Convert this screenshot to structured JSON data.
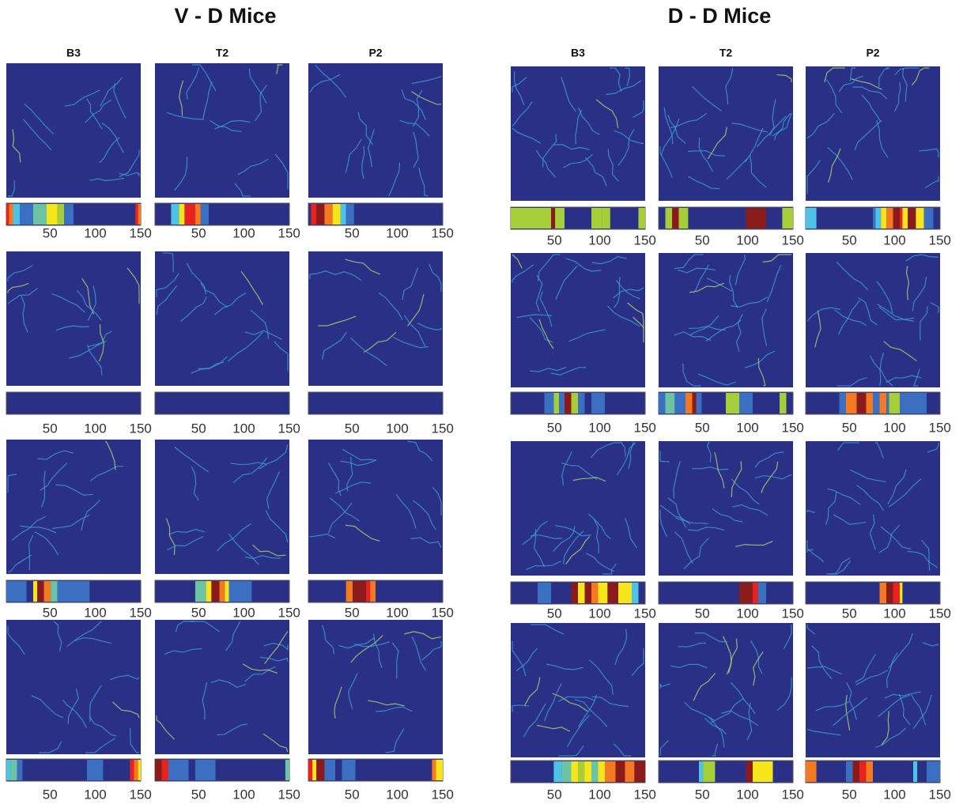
{
  "groups": [
    {
      "title": "V - D Mice",
      "columns": [
        "B3",
        "T2",
        "P2"
      ],
      "xlim": [
        0,
        152
      ],
      "xticks": [
        50,
        100,
        150
      ]
    },
    {
      "title": "D - D Mice",
      "columns": [
        "B3",
        "T2",
        "P2"
      ],
      "xlim": [
        0,
        152
      ],
      "xticks": [
        50,
        100,
        150
      ]
    }
  ]
}
